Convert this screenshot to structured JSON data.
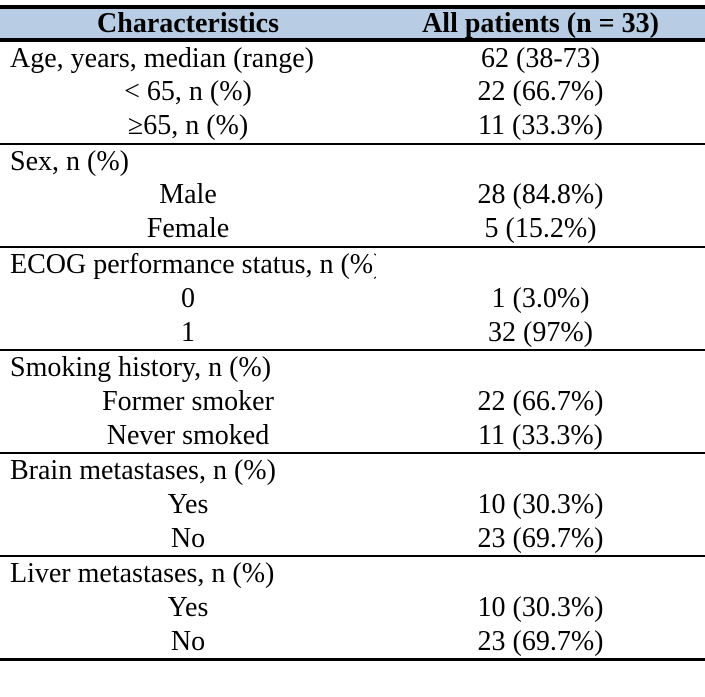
{
  "colors": {
    "header_bg": "#b8cce4",
    "border": "#000000",
    "text": "#000000",
    "page_bg": "#ffffff"
  },
  "table": {
    "columns": [
      {
        "key": "label",
        "header": "Characteristics"
      },
      {
        "key": "value",
        "header": "All patients (n = 33)"
      }
    ],
    "sections": [
      {
        "name": "age",
        "rows": [
          {
            "label": "Age, years, median (range)",
            "value": "62 (38-73)",
            "indent": false
          },
          {
            "label": "< 65, n (%)",
            "value": "22 (66.7%)",
            "indent": true
          },
          {
            "label": "≥65, n (%)",
            "value": "11 (33.3%)",
            "indent": true
          }
        ]
      },
      {
        "name": "sex",
        "rows": [
          {
            "label": "Sex, n (%)",
            "value": "",
            "indent": false
          },
          {
            "label": "Male",
            "value": "28 (84.8%)",
            "indent": true
          },
          {
            "label": "Female",
            "value": "5 (15.2%)",
            "indent": true
          }
        ]
      },
      {
        "name": "ecog-performance-status",
        "rows": [
          {
            "label": "ECOG performance status, n (%)",
            "value": "",
            "indent": false
          },
          {
            "label": "0",
            "value": "1 (3.0%)",
            "indent": true
          },
          {
            "label": "1",
            "value": "32 (97%)",
            "indent": true
          }
        ]
      },
      {
        "name": "smoking-history",
        "rows": [
          {
            "label": "Smoking history, n (%)",
            "value": "",
            "indent": false
          },
          {
            "label": "Former smoker",
            "value": "22 (66.7%)",
            "indent": true
          },
          {
            "label": "Never smoked",
            "value": "11 (33.3%)",
            "indent": true
          }
        ]
      },
      {
        "name": "brain-metastases",
        "rows": [
          {
            "label": "Brain metastases, n (%)",
            "value": "",
            "indent": false
          },
          {
            "label": "Yes",
            "value": "10 (30.3%)",
            "indent": true
          },
          {
            "label": "No",
            "value": "23 (69.7%)",
            "indent": true
          }
        ]
      },
      {
        "name": "liver-metastases",
        "rows": [
          {
            "label": "Liver metastases, n (%)",
            "value": "",
            "indent": false
          },
          {
            "label": "Yes",
            "value": "10 (30.3%)",
            "indent": true
          },
          {
            "label": "No",
            "value": "23 (69.7%)",
            "indent": true
          }
        ]
      }
    ]
  }
}
